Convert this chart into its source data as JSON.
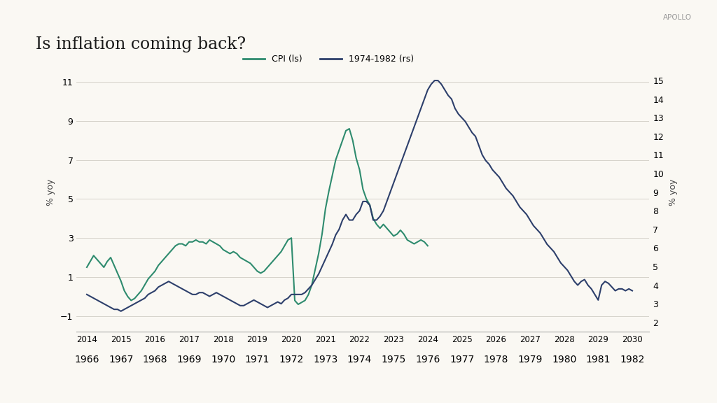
{
  "title": "Is inflation coming back?",
  "apollo_label": "APOLLO",
  "ylabel_left": "% yoy",
  "ylabel_right": "% yoy",
  "legend_cpi": "CPI (ls)",
  "legend_1974": "1974-1982 (rs)",
  "cpi_color": "#2e8b6e",
  "hist_color": "#2d3f6b",
  "background_color": "#faf8f3",
  "ylim_left": [
    -1.8,
    12.5
  ],
  "ylim_right": [
    1.5,
    16.5
  ],
  "yticks_left": [
    -1,
    1,
    3,
    5,
    7,
    9,
    11
  ],
  "yticks_right": [
    2,
    3,
    4,
    5,
    6,
    7,
    8,
    9,
    10,
    11,
    12,
    13,
    14,
    15
  ],
  "xtick_labels_top": [
    "2014",
    "2015",
    "2016",
    "2017",
    "2018",
    "2019",
    "2020",
    "2021",
    "2022",
    "2023",
    "2024",
    "2025",
    "2026",
    "2027",
    "2028",
    "2029",
    "2030"
  ],
  "xtick_labels_bot": [
    "1966",
    "1967",
    "1968",
    "1969",
    "1970",
    "1971",
    "1972",
    "1973",
    "1974",
    "1975",
    "1976",
    "1977",
    "1978",
    "1979",
    "1980",
    "1981",
    "1982"
  ],
  "cpi_x": [
    0.0,
    0.1,
    0.2,
    0.3,
    0.4,
    0.5,
    0.6,
    0.7,
    0.8,
    0.9,
    1.0,
    1.1,
    1.2,
    1.3,
    1.4,
    1.5,
    1.6,
    1.7,
    1.8,
    1.9,
    2.0,
    2.1,
    2.2,
    2.3,
    2.4,
    2.5,
    2.6,
    2.7,
    2.8,
    2.9,
    3.0,
    3.1,
    3.2,
    3.3,
    3.4,
    3.5,
    3.6,
    3.7,
    3.8,
    3.9,
    4.0,
    4.1,
    4.2,
    4.3,
    4.4,
    4.5,
    4.6,
    4.7,
    4.8,
    4.9,
    5.0,
    5.1,
    5.2,
    5.3,
    5.4,
    5.5,
    5.6,
    5.7,
    5.8,
    5.9,
    6.0,
    6.1,
    6.2,
    6.3,
    6.4,
    6.5,
    6.6,
    6.7,
    6.8,
    6.9,
    7.0,
    7.1,
    7.2,
    7.3,
    7.4,
    7.5,
    7.6,
    7.7,
    7.8,
    7.9,
    8.0,
    8.1,
    8.2,
    8.3,
    8.4,
    8.5,
    8.6,
    8.7,
    8.8,
    8.9,
    9.0,
    9.1,
    9.2,
    9.3,
    9.4,
    9.5,
    9.6,
    9.7,
    9.8,
    9.9,
    10.0
  ],
  "cpi_y": [
    1.5,
    1.8,
    2.1,
    1.9,
    1.7,
    1.5,
    1.8,
    2.0,
    1.6,
    1.2,
    0.8,
    0.3,
    0.0,
    -0.2,
    -0.1,
    0.1,
    0.3,
    0.6,
    0.9,
    1.1,
    1.3,
    1.6,
    1.8,
    2.0,
    2.2,
    2.4,
    2.6,
    2.7,
    2.7,
    2.6,
    2.8,
    2.8,
    2.9,
    2.8,
    2.8,
    2.7,
    2.9,
    2.8,
    2.7,
    2.6,
    2.4,
    2.3,
    2.2,
    2.3,
    2.2,
    2.0,
    1.9,
    1.8,
    1.7,
    1.5,
    1.3,
    1.2,
    1.3,
    1.5,
    1.7,
    1.9,
    2.1,
    2.3,
    2.6,
    2.9,
    3.0,
    -0.2,
    -0.4,
    -0.3,
    -0.2,
    0.1,
    0.6,
    1.4,
    2.2,
    3.2,
    4.5,
    5.4,
    6.2,
    7.0,
    7.5,
    8.0,
    8.5,
    8.6,
    8.0,
    7.1,
    6.5,
    5.5,
    5.0,
    4.7,
    4.0,
    3.7,
    3.5,
    3.7,
    3.5,
    3.3,
    3.1,
    3.2,
    3.4,
    3.2,
    2.9,
    2.8,
    2.7,
    2.8,
    2.9,
    2.8,
    2.6
  ],
  "hist_x": [
    0.0,
    0.1,
    0.2,
    0.3,
    0.4,
    0.5,
    0.6,
    0.7,
    0.8,
    0.9,
    1.0,
    1.1,
    1.2,
    1.3,
    1.4,
    1.5,
    1.6,
    1.7,
    1.8,
    1.9,
    2.0,
    2.1,
    2.2,
    2.3,
    2.4,
    2.5,
    2.6,
    2.7,
    2.8,
    2.9,
    3.0,
    3.1,
    3.2,
    3.3,
    3.4,
    3.5,
    3.6,
    3.7,
    3.8,
    3.9,
    4.0,
    4.1,
    4.2,
    4.3,
    4.4,
    4.5,
    4.6,
    4.7,
    4.8,
    4.9,
    5.0,
    5.1,
    5.2,
    5.3,
    5.4,
    5.5,
    5.6,
    5.7,
    5.8,
    5.9,
    6.0,
    6.1,
    6.2,
    6.3,
    6.4,
    6.5,
    6.6,
    6.7,
    6.8,
    6.9,
    7.0,
    7.1,
    7.2,
    7.3,
    7.4,
    7.5,
    7.6,
    7.7,
    7.8,
    7.9,
    8.0,
    8.1,
    8.2,
    8.3,
    8.4,
    8.5,
    8.6,
    8.7,
    8.8,
    8.9,
    9.0,
    9.1,
    9.2,
    9.3,
    9.4,
    9.5,
    9.6,
    9.7,
    9.8,
    9.9,
    10.0,
    10.1,
    10.2,
    10.3,
    10.4,
    10.5,
    10.6,
    10.7,
    10.8,
    10.9,
    11.0,
    11.1,
    11.2,
    11.3,
    11.4,
    11.5,
    11.6,
    11.7,
    11.8,
    11.9,
    12.0,
    12.1,
    12.2,
    12.3,
    12.4,
    12.5,
    12.6,
    12.7,
    12.8,
    12.9,
    13.0,
    13.1,
    13.2,
    13.3,
    13.4,
    13.5,
    13.6,
    13.7,
    13.8,
    13.9,
    14.0,
    14.1,
    14.2,
    14.3,
    14.4,
    14.5,
    14.6,
    14.7,
    14.8,
    14.9,
    15.0,
    15.1,
    15.2,
    15.3,
    15.4,
    15.5,
    15.6,
    15.7,
    15.8,
    15.9,
    16.0
  ],
  "hist_y": [
    3.5,
    3.4,
    3.3,
    3.2,
    3.1,
    3.0,
    2.9,
    2.8,
    2.7,
    2.7,
    2.6,
    2.7,
    2.8,
    2.9,
    3.0,
    3.1,
    3.2,
    3.3,
    3.5,
    3.6,
    3.7,
    3.9,
    4.0,
    4.1,
    4.2,
    4.1,
    4.0,
    3.9,
    3.8,
    3.7,
    3.6,
    3.5,
    3.5,
    3.6,
    3.6,
    3.5,
    3.4,
    3.5,
    3.6,
    3.5,
    3.4,
    3.3,
    3.2,
    3.1,
    3.0,
    2.9,
    2.9,
    3.0,
    3.1,
    3.2,
    3.1,
    3.0,
    2.9,
    2.8,
    2.9,
    3.0,
    3.1,
    3.0,
    3.2,
    3.3,
    3.5,
    3.5,
    3.5,
    3.5,
    3.6,
    3.8,
    4.0,
    4.3,
    4.6,
    5.0,
    5.4,
    5.8,
    6.2,
    6.7,
    7.0,
    7.5,
    7.8,
    7.5,
    7.5,
    7.8,
    8.0,
    8.5,
    8.5,
    8.3,
    7.5,
    7.5,
    7.7,
    8.0,
    8.5,
    9.0,
    9.5,
    10.0,
    10.5,
    11.0,
    11.5,
    12.0,
    12.5,
    13.0,
    13.5,
    14.0,
    14.5,
    14.8,
    15.0,
    15.0,
    14.8,
    14.5,
    14.2,
    14.0,
    13.5,
    13.2,
    13.0,
    12.8,
    12.5,
    12.2,
    12.0,
    11.5,
    11.0,
    10.7,
    10.5,
    10.2,
    10.0,
    9.8,
    9.5,
    9.2,
    9.0,
    8.8,
    8.5,
    8.2,
    8.0,
    7.8,
    7.5,
    7.2,
    7.0,
    6.8,
    6.5,
    6.2,
    6.0,
    5.8,
    5.5,
    5.2,
    5.0,
    4.8,
    4.5,
    4.2,
    4.0,
    4.2,
    4.3,
    4.0,
    3.8,
    3.5,
    3.2,
    4.0,
    4.2,
    4.1,
    3.9,
    3.7,
    3.8,
    3.8,
    3.7,
    3.8,
    3.7
  ]
}
